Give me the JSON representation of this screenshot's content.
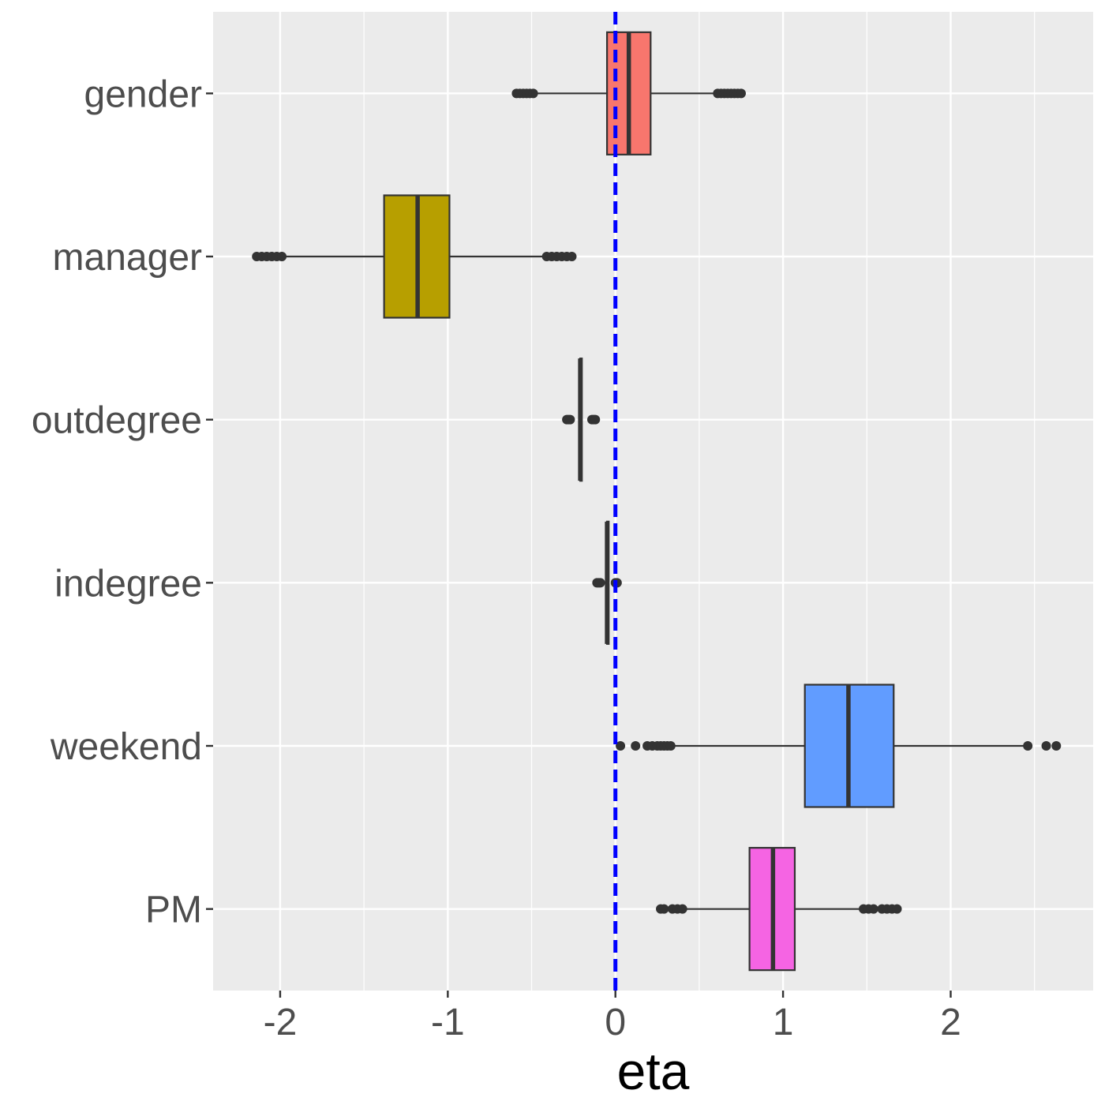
{
  "chart_data": {
    "type": "boxplot",
    "title": "",
    "xlabel": "eta",
    "ylabel": "",
    "xlim": [
      -2.4,
      2.85
    ],
    "x_ticks": [
      -2,
      -1,
      0,
      1,
      2
    ],
    "x_tick_labels": [
      "-2",
      "-1",
      "0",
      "1",
      "2"
    ],
    "grid": true,
    "legend": "none",
    "reference_line": {
      "x": 0,
      "color": "#0000ff",
      "style": "dashed"
    },
    "panel_background": "#ebebeb",
    "categories": [
      "gender",
      "manager",
      "outdegree",
      "indegree",
      "weekend",
      "PM"
    ],
    "series": [
      {
        "category": "gender",
        "fill": "#f8766d",
        "whisker_low": -0.48,
        "q1": -0.05,
        "median": 0.08,
        "q3": 0.21,
        "whisker_high": 0.6,
        "outliers": [
          -0.59,
          -0.57,
          -0.55,
          -0.53,
          -0.51,
          -0.49,
          0.61,
          0.63,
          0.65,
          0.67,
          0.69,
          0.71,
          0.73,
          0.75
        ]
      },
      {
        "category": "manager",
        "fill": "#b79f00",
        "whisker_low": -1.97,
        "q1": -1.38,
        "median": -1.18,
        "q3": -0.99,
        "whisker_high": -0.42,
        "outliers": [
          -2.14,
          -2.11,
          -2.08,
          -2.05,
          -2.02,
          -1.99,
          -0.41,
          -0.38,
          -0.35,
          -0.32,
          -0.29,
          -0.26
        ]
      },
      {
        "category": "outdegree",
        "fill": "#00ba38",
        "whisker_low": -0.21,
        "q1": -0.21,
        "median": -0.21,
        "q3": -0.2,
        "whisker_high": -0.2,
        "outliers": [
          -0.29,
          -0.28,
          -0.27,
          -0.14,
          -0.13,
          -0.12
        ]
      },
      {
        "category": "indegree",
        "fill": "#00bfc4",
        "whisker_low": -0.05,
        "q1": -0.05,
        "median": -0.05,
        "q3": -0.04,
        "whisker_high": -0.04,
        "outliers": [
          -0.11,
          -0.1,
          -0.09,
          0.0,
          0.01
        ]
      },
      {
        "category": "weekend",
        "fill": "#619cff",
        "whisker_low": 0.34,
        "q1": 1.13,
        "median": 1.39,
        "q3": 1.66,
        "whisker_high": 2.44,
        "outliers": [
          0.03,
          0.12,
          0.19,
          0.22,
          0.25,
          0.27,
          0.29,
          0.31,
          0.33,
          2.46,
          2.57,
          2.63
        ]
      },
      {
        "category": "PM",
        "fill": "#f564e3",
        "whisker_low": 0.4,
        "q1": 0.8,
        "median": 0.94,
        "q3": 1.07,
        "whisker_high": 1.47,
        "outliers": [
          0.27,
          0.29,
          0.34,
          0.37,
          0.4,
          1.48,
          1.51,
          1.54,
          1.59,
          1.62,
          1.65,
          1.68
        ]
      }
    ]
  }
}
